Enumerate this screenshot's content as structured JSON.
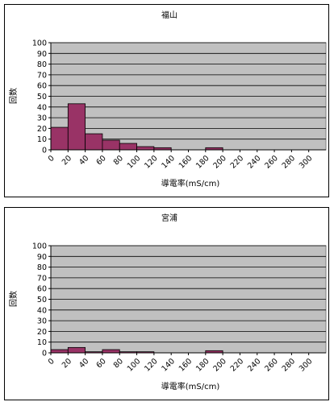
{
  "chart_data": [
    {
      "type": "bar",
      "title": "福山",
      "xlabel": "導電率(mS/cm)",
      "ylabel": "回数",
      "ylim": [
        0,
        100
      ],
      "yticks": [
        0,
        10,
        20,
        30,
        40,
        50,
        60,
        70,
        80,
        90,
        100
      ],
      "xticks": [
        0,
        20,
        40,
        60,
        80,
        100,
        120,
        140,
        160,
        180,
        200,
        220,
        240,
        260,
        280,
        300
      ],
      "xlim": [
        0,
        320
      ],
      "bin_width": 20,
      "bins": [
        0,
        20,
        40,
        60,
        80,
        100,
        120,
        140,
        160,
        180,
        200,
        220,
        240,
        260,
        280,
        300
      ],
      "values": [
        21,
        43,
        15,
        9,
        6,
        3,
        2,
        0,
        0,
        2,
        0,
        0,
        0,
        0,
        0,
        0
      ],
      "grid": true,
      "colors": {
        "bar": "#993366",
        "plot_bg": "#c0c0c0"
      }
    },
    {
      "type": "bar",
      "title": "宮浦",
      "xlabel": "導電率(mS/cm)",
      "ylabel": "回数",
      "ylim": [
        0,
        100
      ],
      "yticks": [
        0,
        10,
        20,
        30,
        40,
        50,
        60,
        70,
        80,
        90,
        100
      ],
      "xticks": [
        0,
        20,
        40,
        60,
        80,
        100,
        120,
        140,
        160,
        180,
        200,
        220,
        240,
        260,
        280,
        300
      ],
      "xlim": [
        0,
        320
      ],
      "bin_width": 20,
      "bins": [
        0,
        20,
        40,
        60,
        80,
        100,
        120,
        140,
        160,
        180,
        200,
        220,
        240,
        260,
        280,
        300
      ],
      "values": [
        3,
        5,
        1,
        3,
        1,
        1,
        0,
        0,
        0,
        2,
        0,
        0,
        0,
        0,
        0,
        0
      ],
      "grid": true,
      "colors": {
        "bar": "#993366",
        "plot_bg": "#c0c0c0"
      }
    }
  ]
}
